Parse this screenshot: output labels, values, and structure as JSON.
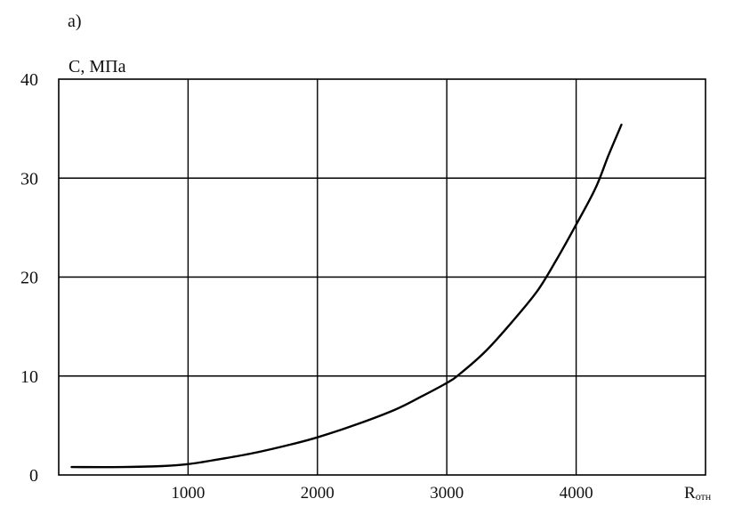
{
  "panel_label": "а)",
  "chart_data": {
    "type": "line",
    "title": "",
    "ylabel": "С, МПа",
    "xlabel": "R",
    "xlabel_sub": "отн",
    "xlim": [
      0,
      5000
    ],
    "ylim": [
      0,
      40
    ],
    "x_ticks": [
      1000,
      2000,
      3000,
      4000
    ],
    "x_tick_labels": [
      "1000",
      "2000",
      "3000",
      "4000"
    ],
    "y_ticks": [
      0,
      10,
      20,
      30,
      40
    ],
    "y_tick_labels": [
      "0",
      "10",
      "20",
      "30",
      "40"
    ],
    "grid": true,
    "legend": "none",
    "series": [
      {
        "color": "#000000",
        "x": [
          100,
          500,
          800,
          1000,
          1200,
          1500,
          1800,
          2000,
          2300,
          2600,
          2800,
          3000,
          3100,
          3300,
          3500,
          3700,
          3850,
          4000,
          4150,
          4250,
          4350
        ],
        "y": [
          0.8,
          0.8,
          0.9,
          1.1,
          1.5,
          2.2,
          3.1,
          3.8,
          5.1,
          6.6,
          7.9,
          9.3,
          10.2,
          12.5,
          15.4,
          18.6,
          21.8,
          25.3,
          29.0,
          32.3,
          35.4
        ]
      }
    ]
  }
}
